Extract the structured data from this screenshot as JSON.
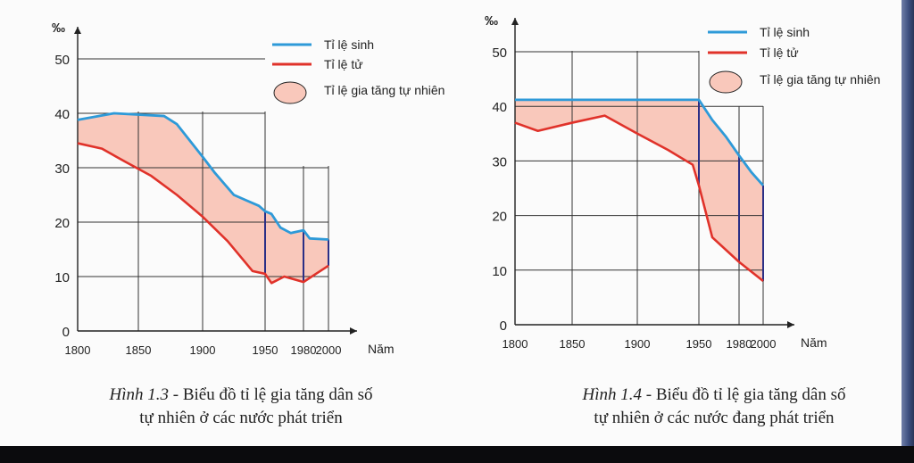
{
  "colors": {
    "birth": "#2e9ad8",
    "death": "#e0322a",
    "fill": "#f9c8bb",
    "grid": "#333333",
    "vline": "#2b2f86"
  },
  "chart_data": [
    {
      "type": "line",
      "ylabel": "‰",
      "xlabel": "Năm",
      "x_ticks": [
        1800,
        1850,
        1900,
        1950,
        1980,
        2000
      ],
      "y_ticks": [
        0,
        10,
        20,
        30,
        40,
        50
      ],
      "ylim": [
        0,
        50
      ],
      "legend_position": "top-right",
      "series": [
        {
          "name": "Tỉ lệ sinh",
          "x": [
            1800,
            1830,
            1870,
            1880,
            1900,
            1910,
            1925,
            1935,
            1945,
            1950,
            1955,
            1962,
            1970,
            1980,
            1985,
            2000
          ],
          "y": [
            38.8,
            40,
            39.5,
            38,
            32,
            29,
            25,
            24,
            23,
            22,
            21.5,
            19,
            18,
            18.5,
            17,
            16.8
          ]
        },
        {
          "name": "Tỉ lệ tử",
          "x": [
            1800,
            1820,
            1840,
            1860,
            1880,
            1900,
            1920,
            1940,
            1950,
            1955,
            1965,
            1980,
            1990,
            2000
          ],
          "y": [
            34.5,
            33.5,
            31,
            28.5,
            25,
            21,
            16.5,
            11,
            10.5,
            8.8,
            10,
            9,
            10.5,
            12
          ]
        },
        {
          "name": "Tỉ lệ gia tăng tự nhiên"
        }
      ],
      "caption": {
        "fig": "Hình 1.3",
        "line1": "- Biểu đồ tỉ lệ gia tăng dân số",
        "line2": "tự nhiên ở các nước phát triển"
      }
    },
    {
      "type": "line",
      "ylabel": "‰",
      "xlabel": "Năm",
      "x_ticks": [
        1800,
        1850,
        1900,
        1950,
        1980,
        2000
      ],
      "y_ticks": [
        0,
        10,
        20,
        30,
        40,
        50
      ],
      "ylim": [
        0,
        50
      ],
      "legend_position": "top-right",
      "series": [
        {
          "name": "Tỉ lệ sinh",
          "x": [
            1800,
            1950,
            1960,
            1970,
            1980,
            1990,
            2000
          ],
          "y": [
            41.2,
            41.2,
            37.5,
            34.5,
            31,
            28,
            25.5
          ]
        },
        {
          "name": "Tỉ lệ tử",
          "x": [
            1800,
            1820,
            1850,
            1875,
            1900,
            1925,
            1945,
            1950,
            1960,
            1980,
            2000
          ],
          "y": [
            37,
            35.5,
            37,
            38.3,
            35,
            32,
            29.3,
            25.5,
            16,
            11.5,
            8
          ]
        },
        {
          "name": "Tỉ lệ gia tăng tự nhiên"
        }
      ],
      "caption": {
        "fig": "Hình 1.4",
        "line1": "- Biểu đồ tỉ lệ gia tăng dân số",
        "line2": "tự nhiên ở các nước đang phát triển"
      }
    }
  ]
}
